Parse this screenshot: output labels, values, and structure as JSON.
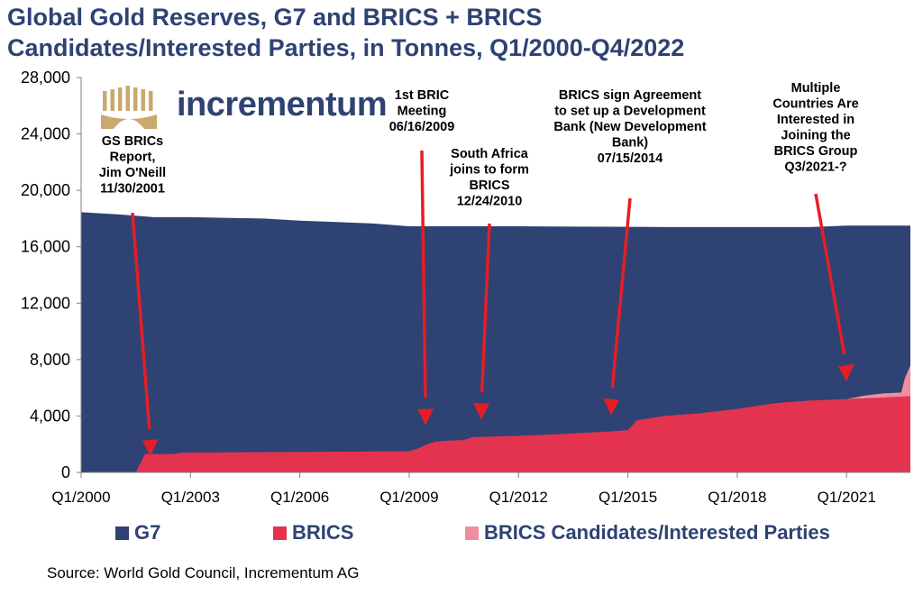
{
  "title": {
    "line1": "Global Gold Reserves, G7 and BRICS + BRICS",
    "line2": "Candidates/Interested Parties, in Tonnes, Q1/2000-Q4/2022"
  },
  "brand": {
    "name": "incrementum"
  },
  "colors": {
    "g7": "#2e4273",
    "brics": "#e3334f",
    "candidates": "#f08ea0",
    "arrow": "#e31e26",
    "logo": "#c9a96e"
  },
  "chart_data": {
    "type": "area",
    "stacked": true,
    "title": "Global Gold Reserves, G7 and BRICS + BRICS Candidates/Interested Parties, in Tonnes, Q1/2000-Q4/2022",
    "xlabel": "",
    "ylabel": "",
    "xlim": [
      2000.0,
      2022.75
    ],
    "ylim": [
      0,
      28000
    ],
    "yticks": [
      "0",
      "4,000",
      "8,000",
      "12,000",
      "16,000",
      "20,000",
      "24,000",
      "28,000"
    ],
    "xticks": [
      "Q1/2000",
      "Q1/2003",
      "Q1/2006",
      "Q1/2009",
      "Q1/2012",
      "Q1/2015",
      "Q1/2018",
      "Q1/2021"
    ],
    "grid": false,
    "legend_position": "bottom",
    "series": [
      {
        "name": "BRICS",
        "x": [
          2000.0,
          2001.5,
          2001.75,
          2002.5,
          2002.75,
          2009.0,
          2009.25,
          2009.5,
          2009.75,
          2010.5,
          2010.75,
          2012.0,
          2013.0,
          2014.5,
          2015.0,
          2015.25,
          2016.0,
          2017.0,
          2018.0,
          2019.0,
          2020.0,
          2021.0,
          2022.0,
          2022.75
        ],
        "values": [
          0,
          0,
          1300,
          1300,
          1400,
          1500,
          1700,
          2000,
          2200,
          2300,
          2500,
          2600,
          2700,
          2900,
          3000,
          3700,
          4000,
          4200,
          4500,
          4900,
          5100,
          5200,
          5300,
          5400
        ]
      },
      {
        "name": "BRICS Candidates/Interested Parties",
        "x": [
          2000.0,
          2021.0,
          2021.25,
          2021.5,
          2022.0,
          2022.5,
          2022.6,
          2022.75
        ],
        "values": [
          0,
          0,
          100,
          200,
          300,
          300,
          1300,
          2200
        ]
      },
      {
        "name": "G7",
        "x": [
          2000.0,
          2001.0,
          2002.0,
          2003.0,
          2005.0,
          2006.0,
          2008.0,
          2009.0,
          2012.0,
          2016.0,
          2020.0,
          2021.0,
          2022.75
        ],
        "values": [
          18450,
          18300,
          18100,
          18100,
          18000,
          17850,
          17650,
          17450,
          17450,
          17400,
          17400,
          17500,
          17500
        ],
        "note": "total of all stacked series (top edge of chart)"
      }
    ],
    "annotations": [
      {
        "lines": [
          "GS BRICs",
          "Report,",
          "Jim O'Neill",
          "11/30/2001"
        ],
        "x": 2001.9,
        "y": 0
      },
      {
        "lines": [
          "1st BRIC",
          "Meeting",
          "06/16/2009"
        ],
        "x": 2009.45,
        "y": 2200
      },
      {
        "lines": [
          "South Africa",
          "joins to form",
          "BRICS",
          "12/24/2010"
        ],
        "x": 2010.98,
        "y": 2600
      },
      {
        "lines": [
          "BRICS sign Agreement",
          "to set up a Development",
          "Bank (New Development",
          "Bank)",
          "07/15/2014"
        ],
        "x": 2014.54,
        "y": 2900
      },
      {
        "lines": [
          "Multiple",
          "Countries Are",
          "Interested in",
          "Joining the",
          "BRICS Group",
          "Q3/2021-?"
        ],
        "x": 2021.0,
        "y": 5300
      }
    ]
  },
  "legend": [
    {
      "label": "G7",
      "color": "#2e4273"
    },
    {
      "label": "BRICS",
      "color": "#e3334f"
    },
    {
      "label": "BRICS Candidates/Interested Parties",
      "color": "#f08ea0"
    }
  ],
  "source": "Source: World Gold Council, Incrementum AG"
}
